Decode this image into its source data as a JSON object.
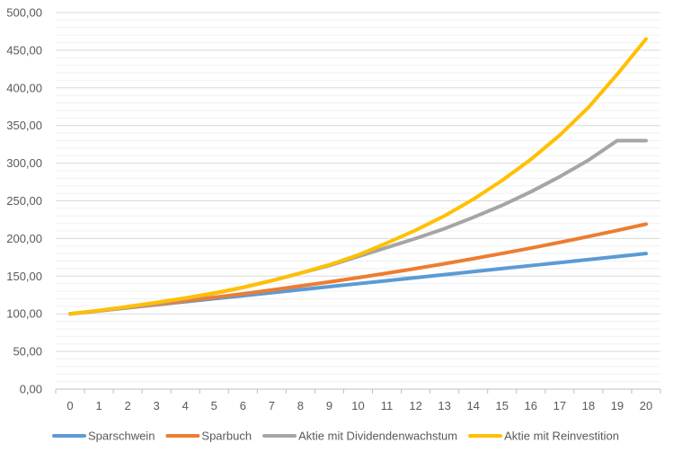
{
  "chart_data": {
    "type": "line",
    "title": "",
    "xlabel": "",
    "ylabel": "",
    "x": [
      0,
      1,
      2,
      3,
      4,
      5,
      6,
      7,
      8,
      9,
      10,
      11,
      12,
      13,
      14,
      15,
      16,
      17,
      18,
      19,
      20
    ],
    "ylim": [
      0,
      500
    ],
    "ytick_labels": [
      "0,00",
      "50,00",
      "100,00",
      "150,00",
      "200,00",
      "250,00",
      "300,00",
      "350,00",
      "400,00",
      "450,00",
      "500,00"
    ],
    "yticks": [
      0,
      50,
      100,
      150,
      200,
      250,
      300,
      350,
      400,
      450,
      500
    ],
    "grid": true,
    "legend_position": "bottom",
    "series": [
      {
        "name": "Sparschwein",
        "color": "#5B9BD5",
        "values": [
          100,
          104,
          108,
          112,
          116,
          120,
          124,
          128,
          132,
          136,
          140,
          144,
          148,
          152,
          156,
          160,
          164,
          168,
          172,
          176,
          180
        ]
      },
      {
        "name": "Sparbuch",
        "color": "#ED7D31",
        "values": [
          100,
          104,
          108.2,
          112.5,
          117,
          121.7,
          126.5,
          131.6,
          136.9,
          142.3,
          148,
          153.9,
          160.1,
          166.5,
          173.2,
          180.1,
          187.3,
          194.8,
          202.6,
          210.7,
          219.1
        ]
      },
      {
        "name": "Aktie mit Dividendenwachstum",
        "color": "#A5A5A5",
        "values": [
          100,
          104,
          108.6,
          113.9,
          120,
          127,
          135,
          144,
          154,
          164,
          176,
          188,
          200,
          213,
          228,
          244,
          262,
          282,
          304,
          330,
          330
        ]
      },
      {
        "name": "Aktie mit Reinvestition",
        "color": "#FFC000",
        "values": [
          100,
          104.5,
          109.5,
          115,
          121,
          127.5,
          135,
          144,
          154,
          165,
          178,
          194,
          211,
          230,
          252,
          277,
          305,
          337,
          374,
          418,
          465
        ]
      }
    ]
  }
}
